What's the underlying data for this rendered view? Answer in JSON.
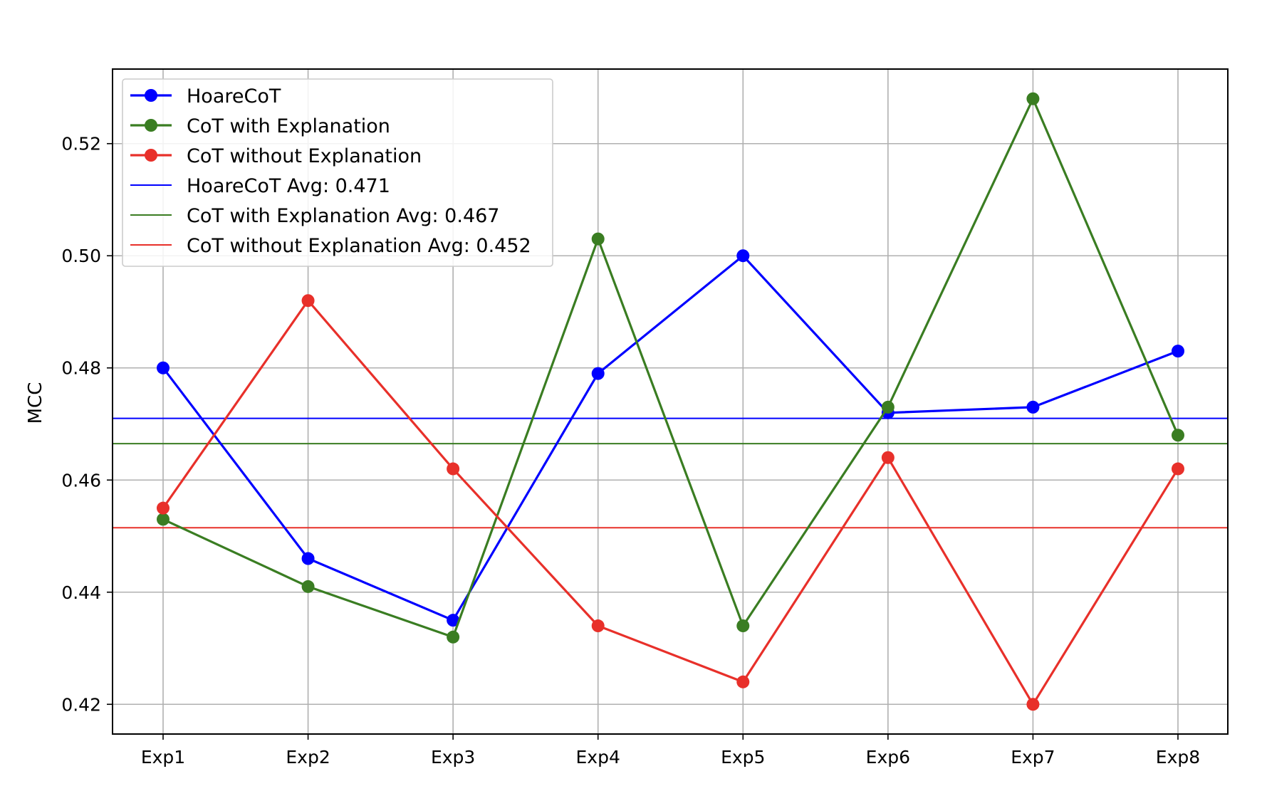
{
  "chart_data": {
    "type": "line",
    "title": "",
    "xlabel": "",
    "ylabel": "MCC",
    "categories": [
      "Exp1",
      "Exp2",
      "Exp3",
      "Exp4",
      "Exp5",
      "Exp6",
      "Exp7",
      "Exp8"
    ],
    "yticks": [
      "0.42",
      "0.44",
      "0.46",
      "0.48",
      "0.50",
      "0.52"
    ],
    "ylim": [
      0.4147,
      0.5333
    ],
    "grid": true,
    "legend_position": "upper-left",
    "series": [
      {
        "name": "HoareCoT",
        "color": "#0000ff",
        "values": [
          0.48,
          0.446,
          0.435,
          0.479,
          0.5,
          0.472,
          0.473,
          0.483
        ]
      },
      {
        "name": "CoT with Explanation",
        "color": "#3a7d22",
        "values": [
          0.453,
          0.441,
          0.432,
          0.503,
          0.434,
          0.473,
          0.528,
          0.468
        ]
      },
      {
        "name": "CoT without Explanation",
        "color": "#e8302a",
        "values": [
          0.455,
          0.492,
          0.462,
          0.434,
          0.424,
          0.464,
          0.42,
          0.462
        ]
      }
    ],
    "averages": [
      {
        "name": "HoareCoT Avg: 0.471",
        "color": "#0000ff",
        "value": 0.471
      },
      {
        "name": "CoT with Explanation Avg: 0.467",
        "color": "#3a7d22",
        "value": 0.4665
      },
      {
        "name": "CoT without Explanation Avg: 0.452",
        "color": "#e8302a",
        "value": 0.4515
      }
    ]
  }
}
